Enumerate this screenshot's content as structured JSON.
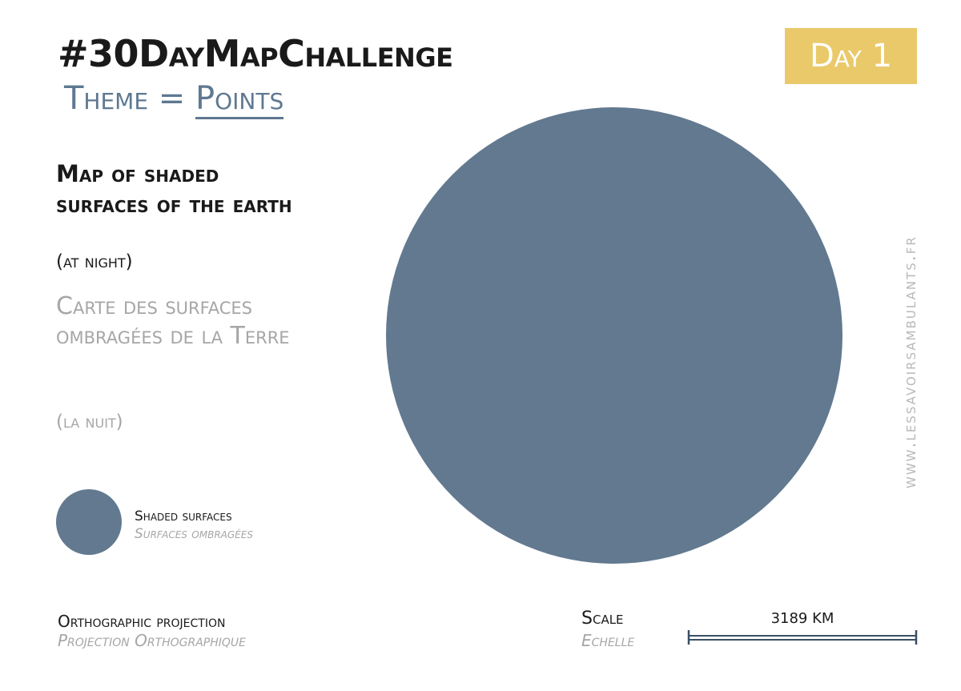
{
  "header": {
    "challenge": "#30DayMapChallenge",
    "theme_label": "Theme = ",
    "theme_value": "Points",
    "day": "Day 1"
  },
  "description": {
    "en_title": "Map of shaded surfaces of the earth",
    "en_subtitle": "(at night)",
    "fr_title": "Carte des surfaces ombragées de la Terre",
    "fr_subtitle": "(la nuit)"
  },
  "legend": {
    "label_en": "Shaded surfaces",
    "label_fr": "Surfaces ombragées"
  },
  "map": {
    "feature": "earth-night-side-disk"
  },
  "projection": {
    "en": "Orthographic projection",
    "fr": "Projection Orthographique"
  },
  "scale": {
    "label_en": "Scale",
    "label_fr": "Echelle",
    "value": "3189 KM"
  },
  "website": "www.lessavoirsambulants.fr",
  "colors": {
    "shade": "#627990",
    "badge": "#e9c96a",
    "theme": "#5e7891",
    "french_text": "#a6a6a6",
    "scale_bar": "#3a4f63"
  }
}
